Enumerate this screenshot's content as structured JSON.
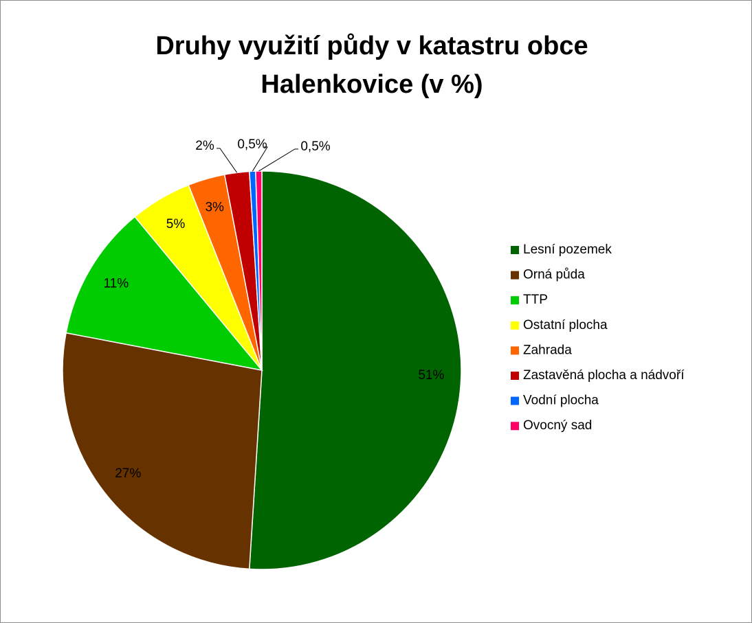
{
  "chart_data": {
    "type": "pie",
    "title": "Druhy využití půdy v katastru obce Halenkovice (v %)",
    "categories": [
      "Lesní pozemek",
      "Orná půda",
      "TTP",
      "Ostatní plocha",
      "Zahrada",
      "Zastavěná plocha a nádvoří",
      "Vodní plocha",
      "Ovocný sad"
    ],
    "values": [
      51,
      27,
      11,
      5,
      3,
      2,
      0.5,
      0.5
    ],
    "value_labels": [
      "51%",
      "27%",
      "11%",
      "5%",
      "3%",
      "2%",
      "0,5%",
      "0,5%"
    ],
    "colors": [
      "#006400",
      "#663300",
      "#00cc00",
      "#ffff00",
      "#ff6600",
      "#c00000",
      "#0066ff",
      "#ff0066"
    ],
    "legend": "right"
  }
}
